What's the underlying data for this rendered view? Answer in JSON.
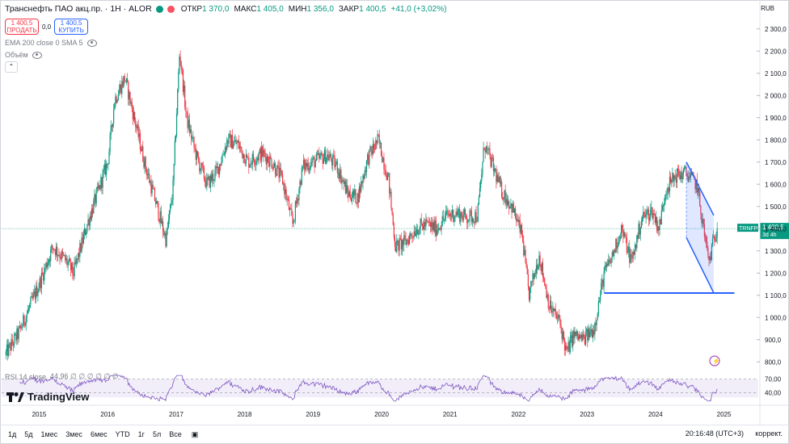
{
  "header": {
    "title": "Транснефть ПАО акц.пр. · 1Н · ALOR",
    "ohlc": [
      {
        "k": "ОТКР",
        "v": "1 370,0"
      },
      {
        "k": "МАКС",
        "v": "1 405,0"
      },
      {
        "k": "МИН",
        "v": "1 356,0"
      },
      {
        "k": "ЗАКР",
        "v": "1 400,5"
      },
      {
        "k": "",
        "v": "+41,0 (+3,02%)"
      }
    ],
    "currency": "RUB"
  },
  "trade": {
    "sell_price": "1 400,5",
    "sell_label": "ПРОДАТЬ",
    "spread": "0,0",
    "buy_price": "1 400,5",
    "buy_label": "КУПИТЬ"
  },
  "indicators": {
    "ema": "EMA 200 close 0 SMA 5",
    "volume": "Объём",
    "rsi": "RSI 14 close",
    "rsi_values": "44,96  ∅  ∅  ∅  ∅  ∅  ∅"
  },
  "colors": {
    "up": "#089981",
    "down": "#f23645",
    "trend": "#2962ff",
    "rsi": "#7e57c2"
  },
  "chart_data": {
    "type": "candlestick",
    "ylim": [
      750,
      2350
    ],
    "y_ticks": [
      800,
      900,
      1000,
      1100,
      1200,
      1300,
      1400,
      1500,
      1600,
      1700,
      1800,
      1900,
      2000,
      2100,
      2200,
      2300
    ],
    "y_tick_labels": [
      "800,0",
      "900,0",
      "1 000,0",
      "1 100,0",
      "1 200,0",
      "1 300,0",
      "1 400,0",
      "1 500,0",
      "1 600,0",
      "1 700,0",
      "1 800,0",
      "1 900,0",
      "2 000,0",
      "2 100,0",
      "2 200,0",
      "2 300,0"
    ],
    "x_labels": [
      "2015",
      "2016",
      "2017",
      "2018",
      "2019",
      "2020",
      "2021",
      "2022",
      "2023",
      "2024",
      "2025"
    ],
    "last_price": "1 400,5",
    "last_price_value": 1400.5,
    "symbol_tag": "TRNFP",
    "countdown": "3d 4h",
    "path": [
      [
        2014.5,
        830
      ],
      [
        2014.7,
        930
      ],
      [
        2015.0,
        1150
      ],
      [
        2015.2,
        1320
      ],
      [
        2015.4,
        1250
      ],
      [
        2015.5,
        1200
      ],
      [
        2015.7,
        1420
      ],
      [
        2015.85,
        1560
      ],
      [
        2016.0,
        1700
      ],
      [
        2016.1,
        1980
      ],
      [
        2016.25,
        2080
      ],
      [
        2016.4,
        1880
      ],
      [
        2016.55,
        1680
      ],
      [
        2016.7,
        1520
      ],
      [
        2016.85,
        1350
      ],
      [
        2016.95,
        1570
      ],
      [
        2017.05,
        2200
      ],
      [
        2017.15,
        1900
      ],
      [
        2017.3,
        1720
      ],
      [
        2017.45,
        1600
      ],
      [
        2017.6,
        1660
      ],
      [
        2017.75,
        1800
      ],
      [
        2017.9,
        1780
      ],
      [
        2018.05,
        1700
      ],
      [
        2018.25,
        1740
      ],
      [
        2018.4,
        1700
      ],
      [
        2018.55,
        1620
      ],
      [
        2018.7,
        1420
      ],
      [
        2018.85,
        1680
      ],
      [
        2019.0,
        1700
      ],
      [
        2019.2,
        1730
      ],
      [
        2019.35,
        1680
      ],
      [
        2019.5,
        1560
      ],
      [
        2019.65,
        1540
      ],
      [
        2019.8,
        1720
      ],
      [
        2019.95,
        1800
      ],
      [
        2020.1,
        1620
      ],
      [
        2020.2,
        1320
      ],
      [
        2020.35,
        1340
      ],
      [
        2020.5,
        1400
      ],
      [
        2020.65,
        1420
      ],
      [
        2020.8,
        1400
      ],
      [
        2020.95,
        1460
      ],
      [
        2021.1,
        1470
      ],
      [
        2021.25,
        1450
      ],
      [
        2021.4,
        1460
      ],
      [
        2021.5,
        1780
      ],
      [
        2021.6,
        1700
      ],
      [
        2021.75,
        1570
      ],
      [
        2021.9,
        1500
      ],
      [
        2022.05,
        1370
      ],
      [
        2022.15,
        1100
      ],
      [
        2022.3,
        1280
      ],
      [
        2022.45,
        1050
      ],
      [
        2022.6,
        980
      ],
      [
        2022.7,
        840
      ],
      [
        2022.8,
        920
      ],
      [
        2022.95,
        900
      ],
      [
        2023.1,
        950
      ],
      [
        2023.25,
        1200
      ],
      [
        2023.35,
        1260
      ],
      [
        2023.5,
        1400
      ],
      [
        2023.65,
        1250
      ],
      [
        2023.8,
        1450
      ],
      [
        2023.95,
        1480
      ],
      [
        2024.05,
        1400
      ],
      [
        2024.15,
        1580
      ],
      [
        2024.3,
        1640
      ],
      [
        2024.45,
        1650
      ],
      [
        2024.6,
        1600
      ],
      [
        2024.7,
        1400
      ],
      [
        2024.78,
        1250
      ],
      [
        2024.85,
        1350
      ],
      [
        2024.9,
        1400.5
      ]
    ],
    "rsi_ylim": [
      20,
      80
    ],
    "rsi_ticks": [
      40,
      70
    ],
    "rsi_tick_labels": [
      "40,00",
      "70,00"
    ],
    "channel": {
      "upper": [
        [
          2024.45,
          1700
        ],
        [
          2024.85,
          1460
        ]
      ],
      "lower": [
        [
          2024.45,
          1360
        ],
        [
          2024.85,
          1110
        ]
      ]
    },
    "support": {
      "y": 1110,
      "x": [
        2023.25,
        2025.15
      ]
    }
  },
  "bottom": {
    "timeframes": [
      "1д",
      "5д",
      "1мес",
      "3мес",
      "6мес",
      "YTD",
      "1г",
      "5л",
      "Все"
    ],
    "time": "20:16:48 (UTC+3)",
    "mode": "коррект."
  },
  "branding": "TradingView"
}
